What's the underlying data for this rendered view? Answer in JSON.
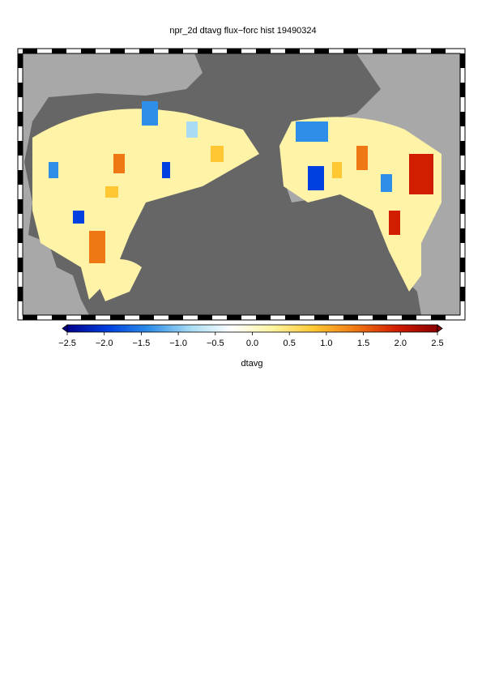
{
  "title": "npr_2d dtavg flux−forc hist 19490324",
  "colorbar": {
    "label": "dtavg",
    "range": [
      -2.5,
      2.5
    ],
    "colors": [
      "#00008c",
      "#0040e0",
      "#2f8fe8",
      "#a8dcf4",
      "#ffffff",
      "#fff4a0",
      "#ffc832",
      "#f07814",
      "#d21e00",
      "#8c0000"
    ],
    "ticks": [
      {
        "value": -2.5,
        "label": "−2.5"
      },
      {
        "value": -2.0,
        "label": "−2.0"
      },
      {
        "value": -1.5,
        "label": "−1.5"
      },
      {
        "value": -1.0,
        "label": "−1.0"
      },
      {
        "value": -0.5,
        "label": "−0.5"
      },
      {
        "value": 0.0,
        "label": "0.0"
      },
      {
        "value": 0.5,
        "label": "0.5"
      },
      {
        "value": 1.0,
        "label": "1.0"
      },
      {
        "value": 1.5,
        "label": "1.5"
      },
      {
        "value": 2.0,
        "label": "2.0"
      },
      {
        "value": 2.5,
        "label": "2.5"
      }
    ]
  }
}
